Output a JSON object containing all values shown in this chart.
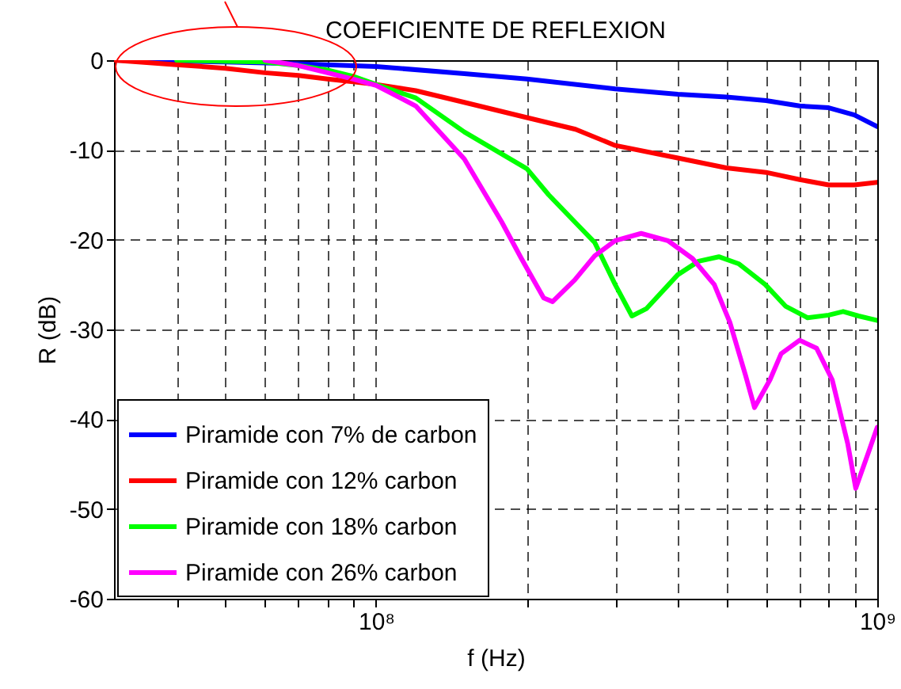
{
  "chart_data": {
    "type": "line",
    "title": "COEFICIENTE DE REFLEXION",
    "xlabel": "f (Hz)",
    "ylabel": "R (dB)",
    "log": "x",
    "grid": true,
    "legend": "bottom left",
    "line_style": "solid",
    "xlim": [
      30000000,
      1000000000
    ],
    "ylim": [
      -60,
      0
    ],
    "xticks": [
      {
        "value": 40000000,
        "label": null
      },
      {
        "value": 50000000,
        "label": null
      },
      {
        "value": 60000000,
        "label": null
      },
      {
        "value": 70000000,
        "label": null
      },
      {
        "value": 80000000,
        "label": null
      },
      {
        "value": 90000000,
        "label": null
      },
      {
        "value": 100000000,
        "label": "10⁸"
      },
      {
        "value": 200000000,
        "label": null
      },
      {
        "value": 300000000,
        "label": null
      },
      {
        "value": 400000000,
        "label": null
      },
      {
        "value": 500000000,
        "label": null
      },
      {
        "value": 600000000,
        "label": null
      },
      {
        "value": 700000000,
        "label": null
      },
      {
        "value": 800000000,
        "label": null
      },
      {
        "value": 900000000,
        "label": null
      },
      {
        "value": 1000000000,
        "label": "10⁹"
      }
    ],
    "yticks": [
      -60,
      -50,
      -40,
      -30,
      -20,
      -10,
      0
    ],
    "series": [
      {
        "name": "Piramide con 7% de carbon",
        "color": "#0000ff",
        "x": [
          30000000,
          50000000,
          70000000,
          100000000,
          150000000,
          200000000,
          300000000,
          400000000,
          500000000,
          600000000,
          700000000,
          800000000,
          900000000,
          1000000000
        ],
        "values": [
          0,
          -0.2,
          -0.4,
          -0.7,
          -1.5,
          -2.1,
          -3.2,
          -3.8,
          -4.1,
          -4.5,
          -5.1,
          -5.3,
          -6.1,
          -7.4
        ]
      },
      {
        "name": "Piramide con 12% carbon",
        "color": "#ff0000",
        "x": [
          30000000,
          40000000,
          50000000,
          60000000,
          70000000,
          80000000,
          90000000,
          100000000,
          120000000,
          150000000,
          200000000,
          250000000,
          300000000,
          400000000,
          500000000,
          600000000,
          700000000,
          800000000,
          900000000,
          1000000000
        ],
        "values": [
          0,
          -0.5,
          -0.9,
          -1.4,
          -1.7,
          -2.1,
          -2.4,
          -2.7,
          -3.4,
          -4.7,
          -6.4,
          -7.7,
          -9.5,
          -10.9,
          -12,
          -12.5,
          -13.3,
          -13.9,
          -13.9,
          -13.6
        ]
      },
      {
        "name": "Piramide con 18% carbon",
        "color": "#00ff00",
        "x": [
          40000000,
          60000000,
          70000000,
          80000000,
          90000000,
          100000000,
          120000000,
          150000000,
          200000000,
          221000000,
          249000000,
          273000000,
          300000000,
          324000000,
          346000000,
          400000000,
          440000000,
          483000000,
          530000000,
          598000000,
          656000000,
          726000000,
          800000000,
          855000000,
          918000000,
          1000000000
        ],
        "values": [
          0,
          -0.2,
          -0.6,
          -1.1,
          -1.8,
          -2.7,
          -4.2,
          -8,
          -12.1,
          -15,
          -18,
          -20.3,
          -25,
          -28.5,
          -27.7,
          -23.9,
          -22.4,
          -21.9,
          -22.7,
          -25,
          -27.4,
          -28.7,
          -28.4,
          -28,
          -28.5,
          -29
        ]
      },
      {
        "name": "Piramide con 26% carbon",
        "color": "#ff00ff",
        "x": [
          60000000,
          70000000,
          80000000,
          90000000,
          100000000,
          120000000,
          150000000,
          178000000,
          195000000,
          216000000,
          225000000,
          249000000,
          273000000,
          300000000,
          338000000,
          382000000,
          428000000,
          473000000,
          508000000,
          546000000,
          569000000,
          611000000,
          643000000,
          700000000,
          757000000,
          813000000,
          873000000,
          906000000,
          966000000,
          1000000000
        ],
        "values": [
          0,
          -0.6,
          -1.4,
          -2.1,
          -2.8,
          -5.1,
          -11,
          -18,
          -22.1,
          -26.5,
          -26.9,
          -24.5,
          -21.8,
          -20.1,
          -19.3,
          -20.1,
          -22.1,
          -25,
          -29.2,
          -35.1,
          -38.7,
          -35.6,
          -32.7,
          -31.2,
          -32.1,
          -35.6,
          -42.7,
          -47.7,
          -43.3,
          -40.9
        ]
      }
    ]
  }
}
